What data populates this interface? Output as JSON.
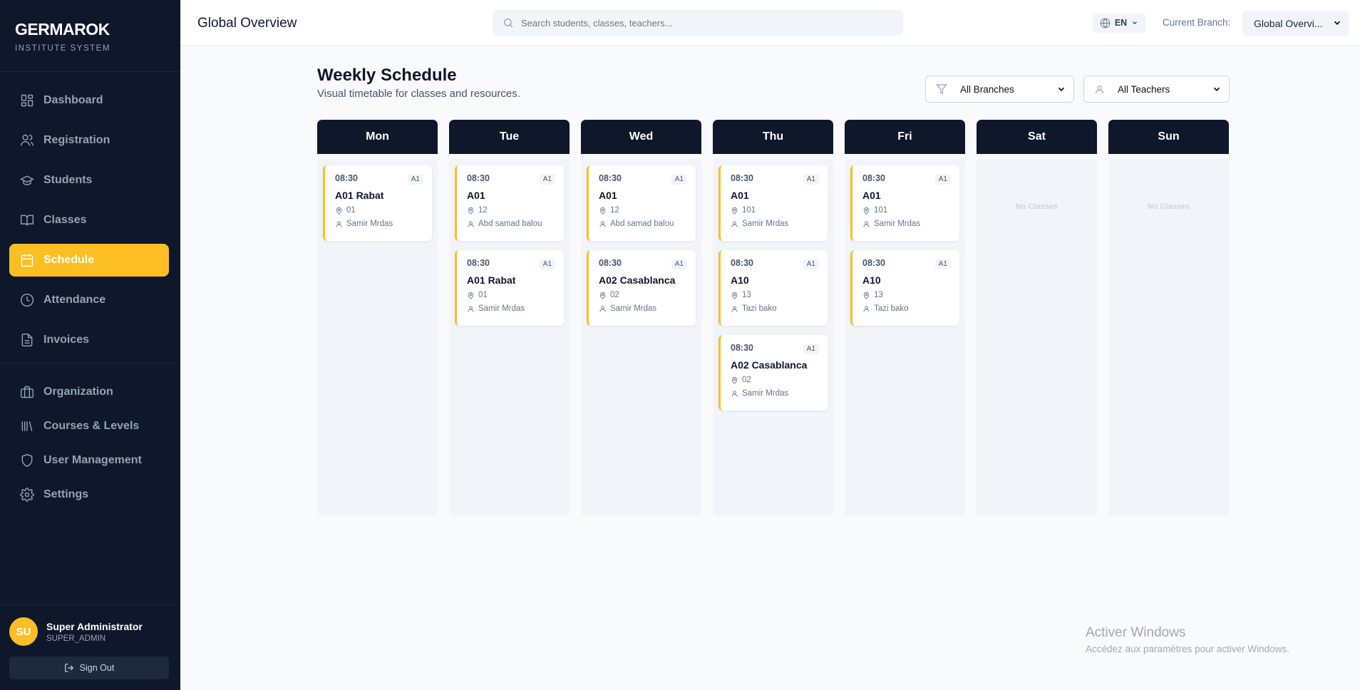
{
  "brand": {
    "name": "GERMAROK",
    "subtitle": "INSTITUTE SYSTEM"
  },
  "sidebar": {
    "items": [
      {
        "label": "Dashboard",
        "icon": "dashboard-icon"
      },
      {
        "label": "Registration",
        "icon": "users-icon"
      },
      {
        "label": "Students",
        "icon": "graduation-cap-icon"
      },
      {
        "label": "Classes",
        "icon": "book-open-icon"
      },
      {
        "label": "Schedule",
        "icon": "calendar-icon",
        "active": true
      },
      {
        "label": "Attendance",
        "icon": "clock-icon"
      },
      {
        "label": "Invoices",
        "icon": "file-text-icon"
      },
      {
        "label": "Organization",
        "icon": "briefcase-icon"
      },
      {
        "label": "Courses & Levels",
        "icon": "library-icon"
      },
      {
        "label": "User Management",
        "icon": "shield-icon"
      },
      {
        "label": "Settings",
        "icon": "gear-icon"
      }
    ],
    "user": {
      "initials": "SU",
      "name": "Super Administrator",
      "role": "SUPER_ADMIN"
    },
    "sign_out": "Sign Out"
  },
  "header": {
    "title": "Global Overview",
    "search_placeholder": "Search students, classes, teachers...",
    "language": "EN",
    "current_branch_label": "Current Branch:",
    "current_branch": "Global Overvi..."
  },
  "page": {
    "title": "Weekly Schedule",
    "subtitle": "Visual timetable for classes and resources.",
    "filters": {
      "branch": "All Branches",
      "teacher": "All Teachers"
    },
    "empty_label": "No Classes"
  },
  "accent": "#fbbf24",
  "days": [
    {
      "name": "Mon",
      "classes": [
        {
          "time": "08:30",
          "level": "A1",
          "name": "A01 Rabat",
          "room": "01",
          "teacher": "Samir Mrdas"
        }
      ]
    },
    {
      "name": "Tue",
      "classes": [
        {
          "time": "08:30",
          "level": "A1",
          "name": "A01",
          "room": "12",
          "teacher": "Abd samad balou"
        },
        {
          "time": "08:30",
          "level": "A1",
          "name": "A01 Rabat",
          "room": "01",
          "teacher": "Samir Mrdas"
        }
      ]
    },
    {
      "name": "Wed",
      "classes": [
        {
          "time": "08:30",
          "level": "A1",
          "name": "A01",
          "room": "12",
          "teacher": "Abd samad balou"
        },
        {
          "time": "08:30",
          "level": "A1",
          "name": "A02 Casablanca",
          "room": "02",
          "teacher": "Samir Mrdas"
        }
      ]
    },
    {
      "name": "Thu",
      "classes": [
        {
          "time": "08:30",
          "level": "A1",
          "name": "A01",
          "room": "101",
          "teacher": "Samir Mrdas"
        },
        {
          "time": "08:30",
          "level": "A1",
          "name": "A10",
          "room": "13",
          "teacher": "Tazi bako"
        },
        {
          "time": "08:30",
          "level": "A1",
          "name": "A02 Casablanca",
          "room": "02",
          "teacher": "Samir Mrdas"
        }
      ]
    },
    {
      "name": "Fri",
      "classes": [
        {
          "time": "08:30",
          "level": "A1",
          "name": "A01",
          "room": "101",
          "teacher": "Samir Mrdas"
        },
        {
          "time": "08:30",
          "level": "A1",
          "name": "A10",
          "room": "13",
          "teacher": "Tazi bako"
        }
      ]
    },
    {
      "name": "Sat",
      "classes": []
    },
    {
      "name": "Sun",
      "classes": []
    }
  ],
  "windows_watermark": {
    "title": "Activer Windows",
    "subtitle": "Accédez aux paramètres pour activer Windows."
  }
}
